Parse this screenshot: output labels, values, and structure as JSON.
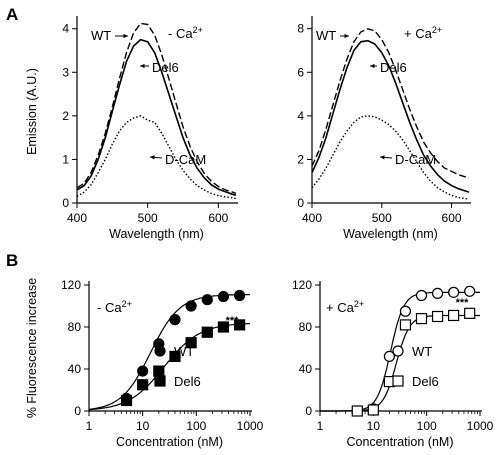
{
  "panel_letters": [
    "A",
    "B"
  ],
  "chart_data": [
    {
      "type": "line",
      "panel": "A",
      "annotation": "- Ca2+",
      "xlabel": "Wavelength (nm)",
      "ylabel": "Emission (A.U.)",
      "xlim": [
        400,
        625
      ],
      "ylim": [
        0,
        4.2
      ],
      "xticks": [
        400,
        500,
        600
      ],
      "yticks": [
        0,
        1,
        2,
        3,
        4
      ],
      "x": [
        400,
        410,
        420,
        430,
        440,
        450,
        460,
        470,
        480,
        490,
        500,
        510,
        520,
        530,
        540,
        550,
        560,
        570,
        580,
        590,
        600,
        610,
        620,
        625
      ],
      "series": [
        {
          "name": "WT",
          "style": "dashed",
          "values": [
            0.35,
            0.45,
            0.7,
            1.1,
            1.6,
            2.2,
            2.85,
            3.45,
            3.9,
            4.12,
            4.1,
            3.85,
            3.4,
            2.85,
            2.3,
            1.75,
            1.3,
            0.95,
            0.68,
            0.5,
            0.38,
            0.3,
            0.25,
            0.22
          ]
        },
        {
          "name": "Del6",
          "style": "solid",
          "values": [
            0.3,
            0.4,
            0.62,
            1.0,
            1.5,
            2.1,
            2.7,
            3.25,
            3.6,
            3.75,
            3.7,
            3.45,
            3.0,
            2.5,
            2.0,
            1.5,
            1.1,
            0.8,
            0.58,
            0.42,
            0.32,
            0.26,
            0.2,
            0.18
          ]
        },
        {
          "name": "D-CaM",
          "style": "dotted",
          "values": [
            0.15,
            0.25,
            0.42,
            0.7,
            1.0,
            1.35,
            1.65,
            1.85,
            1.95,
            2.0,
            1.9,
            1.85,
            1.6,
            1.3,
            1.0,
            0.75,
            0.55,
            0.4,
            0.3,
            0.22,
            0.17,
            0.14,
            0.12,
            0.1
          ]
        }
      ],
      "labels": [
        "WT",
        "Del6",
        "D-CaM"
      ]
    },
    {
      "type": "line",
      "panel": "A",
      "annotation": "+ Ca2+",
      "xlabel": "Wavelength (nm)",
      "ylabel": "",
      "xlim": [
        400,
        625
      ],
      "ylim": [
        0,
        8.4
      ],
      "xticks": [
        400,
        500,
        600
      ],
      "yticks": [
        0,
        2,
        4,
        6,
        8
      ],
      "x": [
        400,
        410,
        420,
        430,
        440,
        450,
        460,
        470,
        480,
        490,
        500,
        510,
        520,
        530,
        540,
        550,
        560,
        570,
        580,
        590,
        600,
        610,
        620,
        625
      ],
      "series": [
        {
          "name": "WT",
          "style": "dashed",
          "values": [
            1.7,
            2.4,
            3.4,
            4.5,
            5.6,
            6.6,
            7.4,
            7.85,
            8.0,
            7.9,
            7.5,
            6.9,
            6.1,
            5.2,
            4.3,
            3.5,
            2.8,
            2.3,
            1.9,
            1.6,
            1.45,
            1.3,
            1.2,
            1.15
          ]
        },
        {
          "name": "Del6",
          "style": "solid",
          "values": [
            1.4,
            2.1,
            3.0,
            4.1,
            5.2,
            6.2,
            7.0,
            7.4,
            7.45,
            7.3,
            6.9,
            6.3,
            5.5,
            4.6,
            3.7,
            2.9,
            2.2,
            1.7,
            1.3,
            1.0,
            0.8,
            0.65,
            0.55,
            0.5
          ]
        },
        {
          "name": "D-CaM",
          "style": "dotted",
          "values": [
            0.7,
            1.1,
            1.6,
            2.2,
            2.8,
            3.3,
            3.7,
            3.95,
            4.0,
            3.95,
            3.8,
            3.6,
            3.3,
            2.9,
            2.4,
            1.9,
            1.4,
            1.0,
            0.7,
            0.5,
            0.35,
            0.25,
            0.2,
            0.17
          ]
        }
      ],
      "labels": [
        "WT",
        "Del6",
        "D-CaM"
      ]
    },
    {
      "type": "scatter",
      "panel": "B",
      "annotation": "- Ca2+",
      "xlabel": "Concentration (nM)",
      "ylabel": "% Fluorescence increase",
      "xscale": "log",
      "xlim": [
        1,
        1000
      ],
      "ylim": [
        0,
        120
      ],
      "xticks": [
        1,
        10,
        100,
        1000
      ],
      "yticks": [
        0,
        40,
        80,
        120
      ],
      "significance": "***",
      "series": [
        {
          "name": "WT",
          "marker": "filled-circle",
          "x": [
            5,
            10,
            20,
            40,
            80,
            160,
            320,
            640
          ],
          "y": [
            12,
            38,
            64,
            87,
            100,
            106,
            109,
            110
          ]
        },
        {
          "name": "Del6",
          "marker": "filled-square",
          "x": [
            5,
            10,
            20,
            40,
            80,
            160,
            320,
            640
          ],
          "y": [
            10,
            25,
            38,
            52,
            65,
            75,
            80,
            82
          ]
        }
      ],
      "fits": [
        {
          "name": "WT",
          "top": 111,
          "ec50": 14,
          "hill": 1.6
        },
        {
          "name": "Del6",
          "top": 84,
          "ec50": 25,
          "hill": 1.3
        }
      ],
      "legend": [
        "WT",
        "Del6"
      ],
      "legend_position": "bottom-right"
    },
    {
      "type": "scatter",
      "panel": "B",
      "annotation": "+ Ca2+",
      "xlabel": "Concentration (nM)",
      "ylabel": "",
      "xscale": "log",
      "xlim": [
        1,
        1000
      ],
      "ylim": [
        0,
        120
      ],
      "xticks": [
        1,
        10,
        100,
        1000
      ],
      "yticks": [
        0,
        40,
        80,
        120
      ],
      "significance": "***",
      "series": [
        {
          "name": "WT",
          "marker": "open-circle",
          "x": [
            5,
            10,
            20,
            40,
            80,
            160,
            320,
            640
          ],
          "y": [
            0,
            2,
            52,
            95,
            110,
            112,
            113,
            114
          ]
        },
        {
          "name": "Del6",
          "marker": "open-square",
          "x": [
            5,
            10,
            20,
            40,
            80,
            160,
            320,
            640
          ],
          "y": [
            0,
            1,
            28,
            82,
            88,
            90,
            91,
            93
          ]
        }
      ],
      "fits": [
        {
          "name": "WT",
          "top": 113,
          "ec50": 21,
          "hill": 3.5
        },
        {
          "name": "Del6",
          "top": 91,
          "ec50": 27,
          "hill": 3.5
        }
      ],
      "legend": [
        "WT",
        "Del6"
      ],
      "legend_position": "bottom-right"
    }
  ]
}
